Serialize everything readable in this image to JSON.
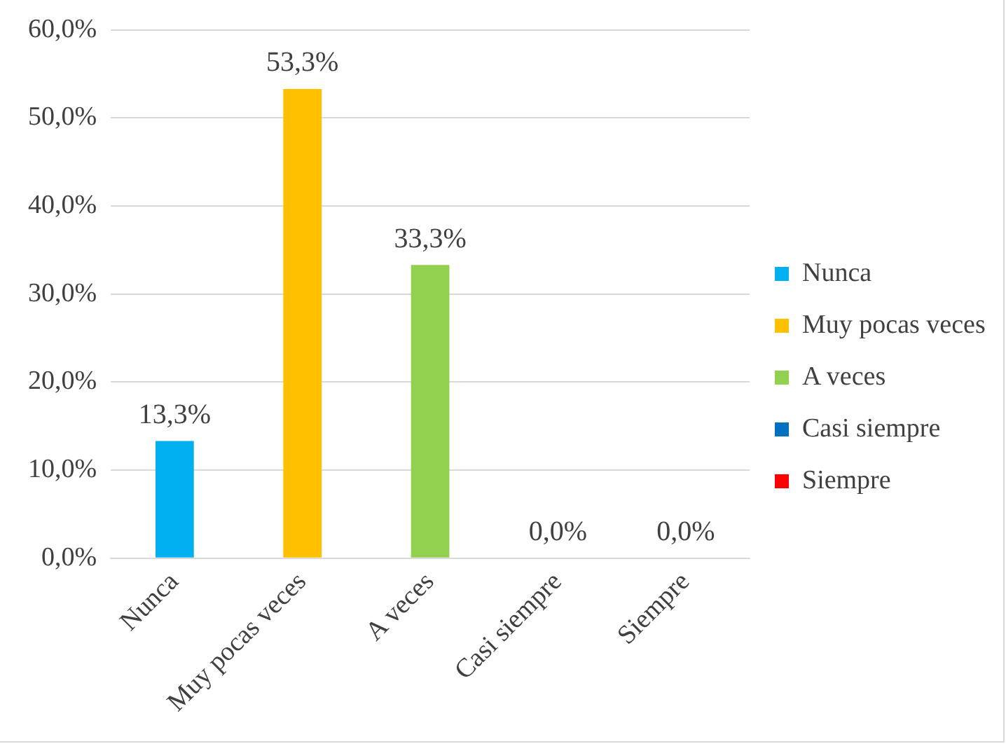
{
  "chart_data": {
    "type": "bar",
    "categories": [
      "Nunca",
      "Muy pocas veces",
      "A veces",
      "Casi siempre",
      "Siempre"
    ],
    "series": [
      {
        "name": "Nunca",
        "color": "#00b0f0",
        "values": [
          13.3,
          null,
          null,
          null,
          null
        ],
        "value_labels": [
          "13,3%",
          null,
          null,
          null,
          null
        ]
      },
      {
        "name": "Muy pocas veces",
        "color": "#ffc000",
        "values": [
          null,
          53.3,
          null,
          null,
          null
        ],
        "value_labels": [
          null,
          "53,3%",
          null,
          null,
          null
        ]
      },
      {
        "name": "A veces",
        "color": "#92d050",
        "values": [
          null,
          null,
          33.3,
          null,
          null
        ],
        "value_labels": [
          null,
          null,
          "33,3%",
          null,
          null
        ]
      },
      {
        "name": "Casi siempre",
        "color": "#0070c0",
        "values": [
          null,
          null,
          null,
          0,
          null
        ],
        "value_labels": [
          null,
          null,
          null,
          "0,0%",
          null
        ]
      },
      {
        "name": "Siempre",
        "color": "#ff0000",
        "values": [
          null,
          null,
          null,
          null,
          0
        ],
        "value_labels": [
          null,
          null,
          null,
          null,
          "0,0%"
        ]
      }
    ],
    "ylim": [
      0,
      60
    ],
    "yticks": [
      {
        "value": 0,
        "label": "0,0%"
      },
      {
        "value": 10,
        "label": "10,0%"
      },
      {
        "value": 20,
        "label": "20,0%"
      },
      {
        "value": 30,
        "label": "30,0%"
      },
      {
        "value": 40,
        "label": "40,0%"
      },
      {
        "value": 50,
        "label": "50,0%"
      },
      {
        "value": 60,
        "label": "60,0%"
      }
    ],
    "grid": "y",
    "legend": "right"
  }
}
